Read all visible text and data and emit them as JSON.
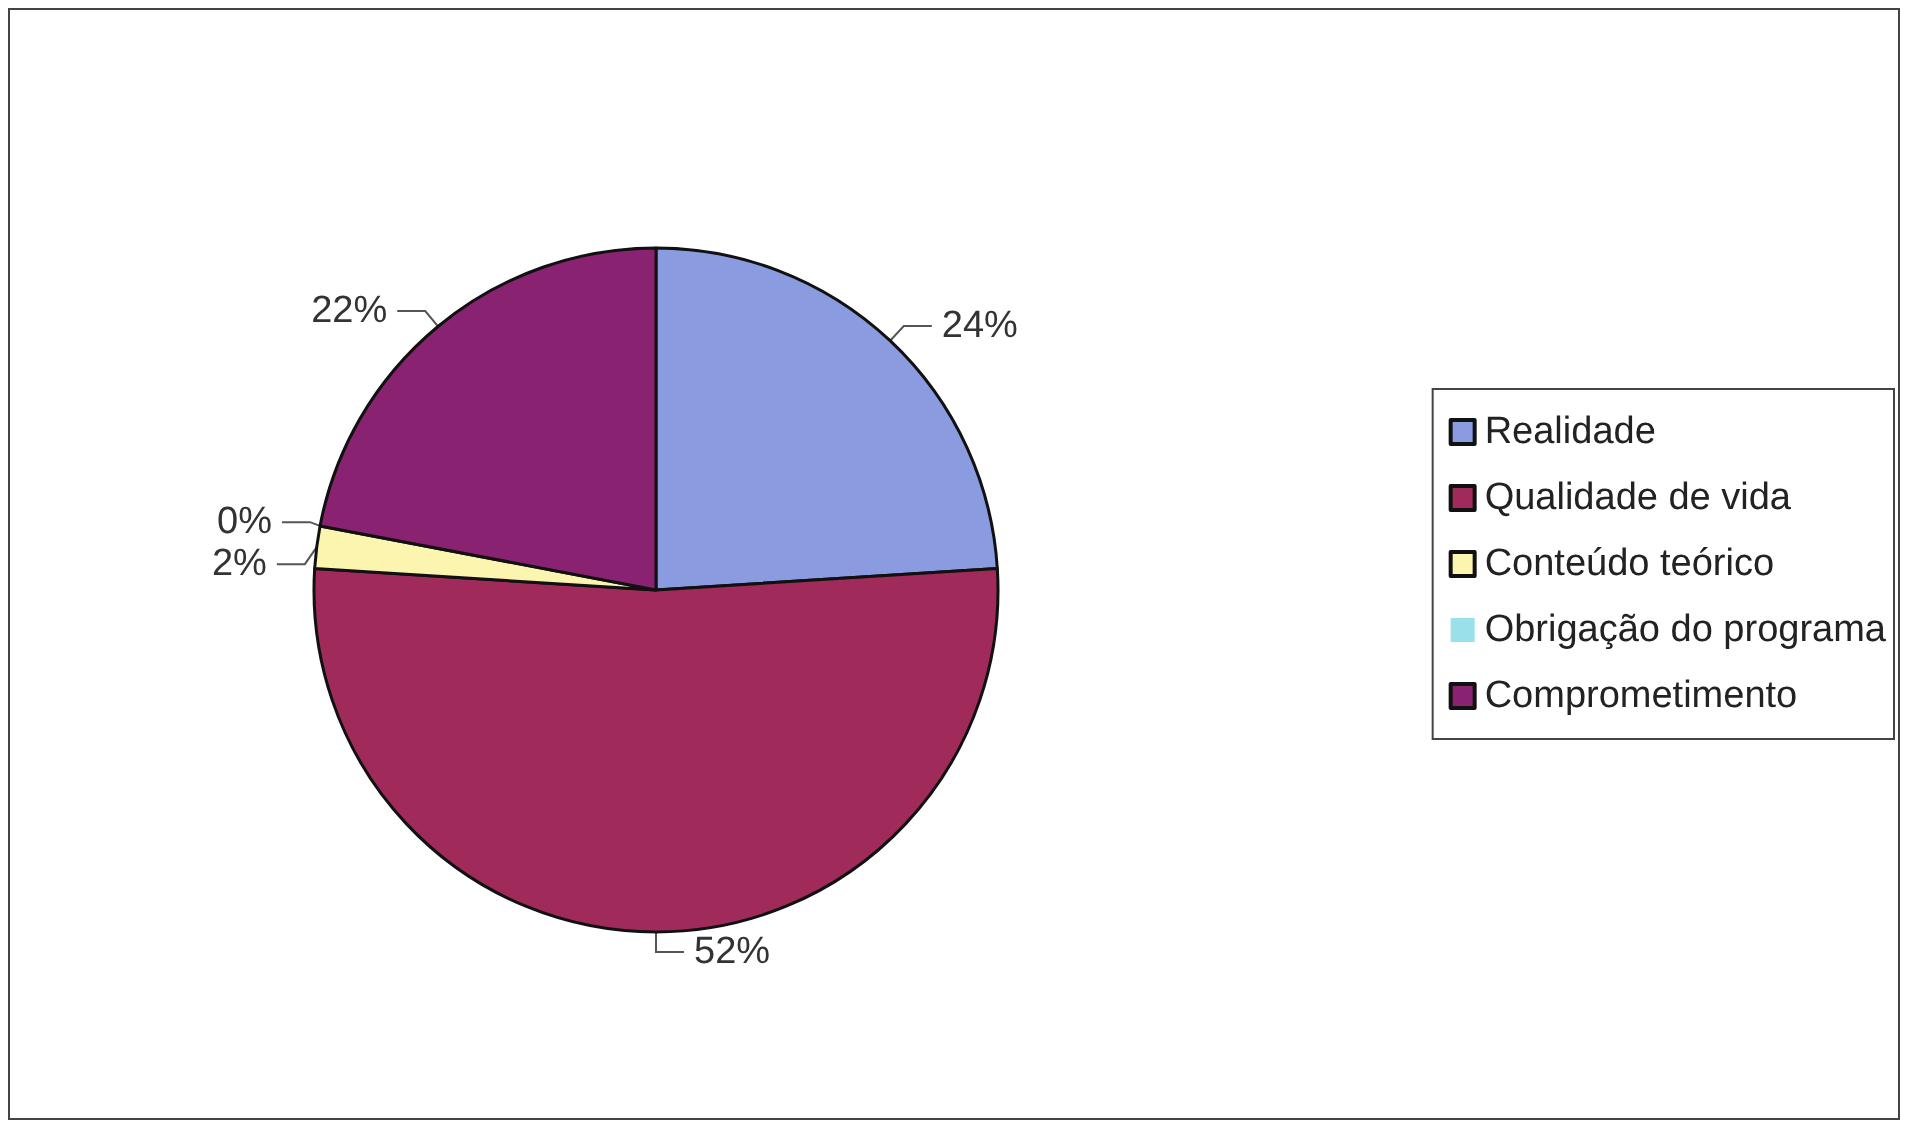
{
  "chart_data": {
    "type": "pie",
    "categories": [
      "Realidade",
      "Qualidade de vida",
      "Conteúdo teórico",
      "Obrigação do programa",
      "Comprometimento"
    ],
    "values": [
      24,
      52,
      2,
      0,
      22
    ],
    "colors": [
      "#8a9be0",
      "#a02a5a",
      "#fbf5b0",
      "#99e0ea",
      "#8a2272"
    ],
    "value_labels": [
      "24%",
      "52%",
      "2%",
      "0%",
      "22%"
    ],
    "legend": "right"
  }
}
